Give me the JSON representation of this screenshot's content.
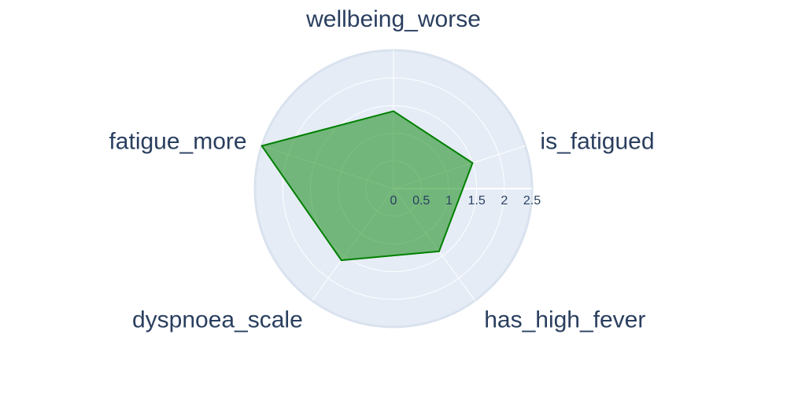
{
  "chart_data": {
    "type": "radar",
    "categories": [
      "wellbeing_worse",
      "is_fatigued",
      "has_high_fever",
      "dyspnoea_scale",
      "fatigue_more"
    ],
    "values": [
      1.4,
      1.5,
      1.4,
      1.6,
      2.5
    ],
    "radial_ticks": [
      "0",
      "0.5",
      "1",
      "1.5",
      "2",
      "2.5"
    ],
    "radial_range": [
      0,
      2.5
    ],
    "grid": true,
    "legend": "none",
    "colors": {
      "fill": "#008000",
      "line": "#008000",
      "polar_bg": "#e5ecf6",
      "grid": "#ffffff",
      "text": "#2a3f5f"
    }
  }
}
